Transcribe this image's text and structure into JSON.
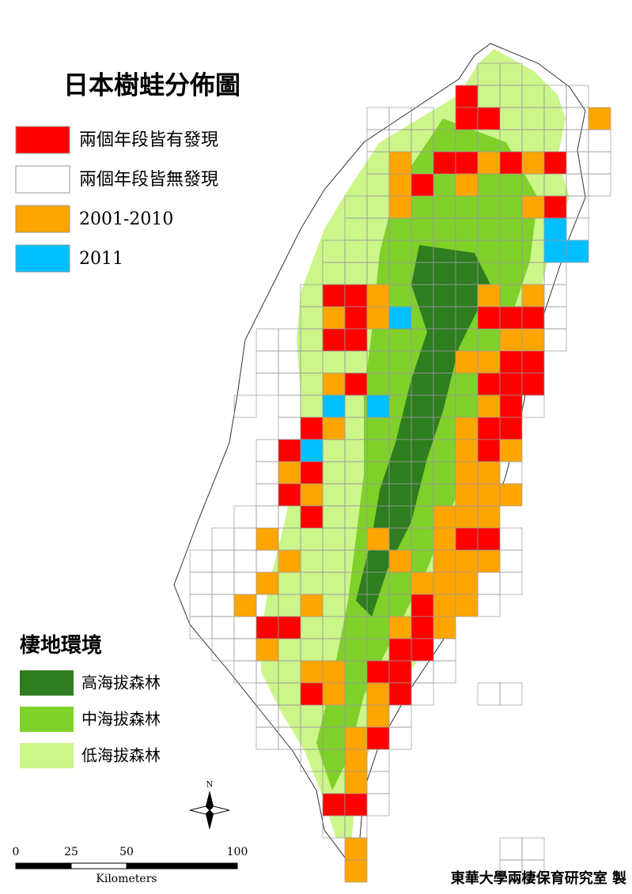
{
  "title": "日本樹蛙分佈圖",
  "legend": [
    {
      "label": "兩個年段皆有發現",
      "color": "#ff0000"
    },
    {
      "label": "兩個年段皆無發現",
      "color": "#ffffff"
    },
    {
      "label": "2001-2010",
      "color": "#ffa500"
    },
    {
      "label": "2011",
      "color": "#00bfff"
    }
  ],
  "habitat": {
    "title": "棲地環境",
    "items": [
      {
        "label": "高海拔森林",
        "color": "#2e7d1e"
      },
      {
        "label": "中海拔森林",
        "color": "#7fd12a"
      },
      {
        "label": "低海拔森林",
        "color": "#ccf58a"
      }
    ]
  },
  "scale_bar": {
    "ticks": [
      0,
      25,
      50,
      100
    ],
    "unit": "Kilometers"
  },
  "north": "N",
  "credit": "東華大學兩棲保育研究室 製"
}
